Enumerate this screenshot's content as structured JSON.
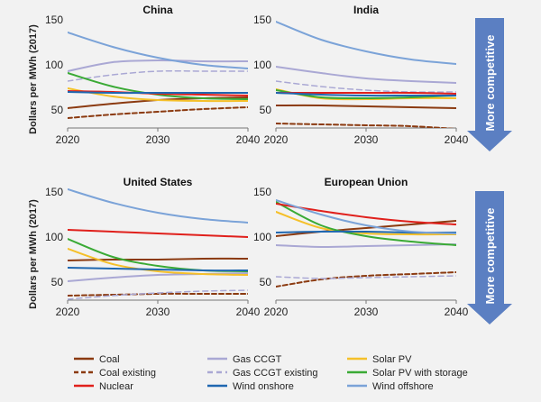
{
  "y_axis_label": "Dollars per MWh (2017)",
  "arrow_label": "More competitive",
  "colors": {
    "Coal": "#8b3a10",
    "Coal existing": "#8b3a10",
    "Gas CCGT": "#aaa8d4",
    "Gas CCGT existing": "#aaa8d4",
    "Solar PV": "#f5c02a",
    "Solar PV with storage": "#3aaa35",
    "Nuclear": "#e0201c",
    "Wind onshore": "#1f67b0",
    "Wind offshore": "#7ba3d8",
    "arrow": "#5b7fc2"
  },
  "legend": [
    [
      "Coal",
      "Gas CCGT",
      "Solar PV"
    ],
    [
      "Coal existing",
      "Gas CCGT existing",
      "Solar PV with storage"
    ],
    [
      "Nuclear",
      "Wind onshore",
      "Wind offshore"
    ]
  ],
  "chart_data": [
    {
      "type": "line",
      "title": "China",
      "ylabel": "Dollars per MWh (2017)",
      "x_ticks": [
        2020,
        2030,
        2040
      ],
      "y_ticks": [
        50,
        100,
        150
      ],
      "ylim": [
        30,
        150
      ],
      "xlim": [
        2020,
        2040
      ],
      "series": [
        {
          "name": "Coal",
          "x": [
            2020,
            2025,
            2030,
            2035,
            2040
          ],
          "y": [
            52,
            57,
            61,
            63,
            64
          ]
        },
        {
          "name": "Coal existing",
          "x": [
            2020,
            2025,
            2030,
            2035,
            2040
          ],
          "y": [
            41,
            45,
            48,
            51,
            53
          ]
        },
        {
          "name": "Gas CCGT",
          "x": [
            2020,
            2025,
            2030,
            2035,
            2040
          ],
          "y": [
            93,
            103,
            105,
            104,
            104
          ]
        },
        {
          "name": "Gas CCGT existing",
          "x": [
            2020,
            2025,
            2030,
            2035,
            2040
          ],
          "y": [
            82,
            89,
            93,
            93,
            93
          ]
        },
        {
          "name": "Solar PV",
          "x": [
            2020,
            2025,
            2030,
            2035,
            2040
          ],
          "y": [
            74,
            65,
            61,
            60,
            60
          ]
        },
        {
          "name": "Solar PV with storage",
          "x": [
            2020,
            2025,
            2030,
            2035,
            2040
          ],
          "y": [
            91,
            76,
            67,
            63,
            62
          ]
        },
        {
          "name": "Nuclear",
          "x": [
            2020,
            2025,
            2030,
            2035,
            2040
          ],
          "y": [
            71,
            70,
            68,
            67,
            66
          ]
        },
        {
          "name": "Wind onshore",
          "x": [
            2020,
            2025,
            2030,
            2035,
            2040
          ],
          "y": [
            70,
            69,
            69,
            69,
            69
          ]
        },
        {
          "name": "Wind offshore",
          "x": [
            2020,
            2025,
            2030,
            2035,
            2040
          ],
          "y": [
            136,
            120,
            108,
            100,
            96
          ]
        }
      ]
    },
    {
      "type": "line",
      "title": "India",
      "x_ticks": [
        2020,
        2030,
        2040
      ],
      "y_ticks": [
        50,
        100,
        150
      ],
      "ylim": [
        30,
        150
      ],
      "xlim": [
        2020,
        2040
      ],
      "series": [
        {
          "name": "Coal",
          "x": [
            2020,
            2025,
            2030,
            2035,
            2040
          ],
          "y": [
            55,
            55,
            54,
            53,
            52
          ]
        },
        {
          "name": "Coal existing",
          "x": [
            2020,
            2025,
            2030,
            2035,
            2040
          ],
          "y": [
            35,
            34,
            33,
            32,
            29
          ]
        },
        {
          "name": "Gas CCGT",
          "x": [
            2020,
            2025,
            2030,
            2035,
            2040
          ],
          "y": [
            98,
            91,
            85,
            82,
            80
          ]
        },
        {
          "name": "Gas CCGT existing",
          "x": [
            2020,
            2025,
            2030,
            2035,
            2040
          ],
          "y": [
            82,
            76,
            72,
            70,
            70
          ]
        },
        {
          "name": "Solar PV",
          "x": [
            2020,
            2025,
            2030,
            2035,
            2040
          ],
          "y": [
            73,
            63,
            62,
            63,
            63
          ]
        },
        {
          "name": "Solar PV with storage",
          "x": [
            2020,
            2025,
            2030,
            2035,
            2040
          ],
          "y": [
            72,
            64,
            63,
            64,
            66
          ]
        },
        {
          "name": "Nuclear",
          "x": [
            2020,
            2025,
            2030,
            2035,
            2040
          ],
          "y": [
            69,
            69,
            69,
            69,
            68
          ]
        },
        {
          "name": "Wind onshore",
          "x": [
            2020,
            2025,
            2030,
            2035,
            2040
          ],
          "y": [
            69,
            67,
            66,
            66,
            66
          ]
        },
        {
          "name": "Wind offshore",
          "x": [
            2020,
            2025,
            2030,
            2035,
            2040
          ],
          "y": [
            148,
            128,
            115,
            106,
            101
          ]
        }
      ]
    },
    {
      "type": "line",
      "title": "United States",
      "ylabel": "Dollars per MWh (2017)",
      "x_ticks": [
        2020,
        2030,
        2040
      ],
      "y_ticks": [
        50,
        100,
        150
      ],
      "ylim": [
        30,
        150
      ],
      "xlim": [
        2020,
        2040
      ],
      "series": [
        {
          "name": "Coal",
          "x": [
            2020,
            2025,
            2030,
            2035,
            2040
          ],
          "y": [
            74,
            75,
            75,
            76,
            76
          ]
        },
        {
          "name": "Coal existing",
          "x": [
            2020,
            2025,
            2030,
            2035,
            2040
          ],
          "y": [
            35,
            36,
            37,
            37,
            37
          ]
        },
        {
          "name": "Gas CCGT",
          "x": [
            2020,
            2025,
            2030,
            2035,
            2040
          ],
          "y": [
            51,
            55,
            58,
            59,
            60
          ]
        },
        {
          "name": "Gas CCGT existing",
          "x": [
            2020,
            2025,
            2030,
            2035,
            2040
          ],
          "y": [
            31,
            35,
            38,
            40,
            41
          ]
        },
        {
          "name": "Solar PV",
          "x": [
            2020,
            2025,
            2030,
            2035,
            2040
          ],
          "y": [
            87,
            70,
            62,
            59,
            58
          ]
        },
        {
          "name": "Solar PV with storage",
          "x": [
            2020,
            2025,
            2030,
            2035,
            2040
          ],
          "y": [
            98,
            78,
            68,
            63,
            62
          ]
        },
        {
          "name": "Nuclear",
          "x": [
            2020,
            2025,
            2030,
            2035,
            2040
          ],
          "y": [
            108,
            106,
            104,
            102,
            100
          ]
        },
        {
          "name": "Wind onshore",
          "x": [
            2020,
            2025,
            2030,
            2035,
            2040
          ],
          "y": [
            66,
            65,
            64,
            63,
            63
          ]
        },
        {
          "name": "Wind offshore",
          "x": [
            2020,
            2025,
            2030,
            2035,
            2040
          ],
          "y": [
            153,
            138,
            127,
            120,
            116
          ]
        }
      ]
    },
    {
      "type": "line",
      "title": "European Union",
      "x_ticks": [
        2020,
        2030,
        2040
      ],
      "y_ticks": [
        50,
        100,
        150
      ],
      "ylim": [
        30,
        150
      ],
      "xlim": [
        2020,
        2040
      ],
      "series": [
        {
          "name": "Coal",
          "x": [
            2020,
            2025,
            2030,
            2035,
            2040
          ],
          "y": [
            101,
            106,
            110,
            114,
            118
          ]
        },
        {
          "name": "Coal existing",
          "x": [
            2020,
            2025,
            2030,
            2035,
            2040
          ],
          "y": [
            45,
            53,
            57,
            59,
            61
          ]
        },
        {
          "name": "Gas CCGT",
          "x": [
            2020,
            2025,
            2030,
            2035,
            2040
          ],
          "y": [
            91,
            89,
            90,
            91,
            92
          ]
        },
        {
          "name": "Gas CCGT existing",
          "x": [
            2020,
            2025,
            2030,
            2035,
            2040
          ],
          "y": [
            56,
            54,
            55,
            56,
            57
          ]
        },
        {
          "name": "Solar PV",
          "x": [
            2020,
            2025,
            2030,
            2035,
            2040
          ],
          "y": [
            128,
            110,
            104,
            103,
            103
          ]
        },
        {
          "name": "Solar PV with storage",
          "x": [
            2020,
            2025,
            2030,
            2035,
            2040
          ],
          "y": [
            139,
            113,
            101,
            95,
            91
          ]
        },
        {
          "name": "Nuclear",
          "x": [
            2020,
            2025,
            2030,
            2035,
            2040
          ],
          "y": [
            137,
            129,
            122,
            117,
            114
          ]
        },
        {
          "name": "Wind onshore",
          "x": [
            2020,
            2025,
            2030,
            2035,
            2040
          ],
          "y": [
            105,
            106,
            106,
            105,
            105
          ]
        },
        {
          "name": "Wind offshore",
          "x": [
            2020,
            2025,
            2030,
            2035,
            2040
          ],
          "y": [
            141,
            125,
            113,
            106,
            104
          ]
        }
      ]
    }
  ]
}
